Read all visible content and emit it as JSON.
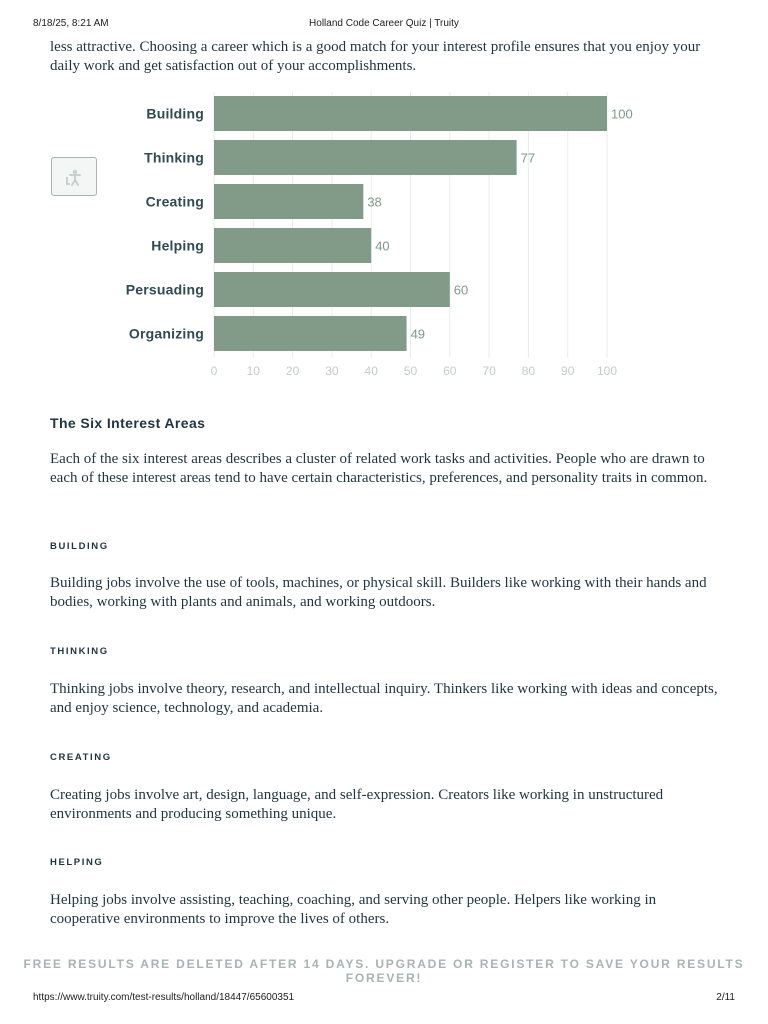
{
  "print_header": {
    "datetime": "8/18/25, 8:21 AM",
    "page_title": "Holland Code Career Quiz | Truity"
  },
  "print_footer": {
    "url": "https://www.truity.com/test-results/holland/18447/65600351",
    "page_number": "2/11"
  },
  "intro_text": "less attractive. Choosing a career which is a good match for your interest profile ensures that you enjoy your daily work and get satisfaction out of your accomplishments.",
  "side_button": {
    "icon": "accessibility-icon"
  },
  "chart_data": {
    "type": "bar",
    "orientation": "horizontal",
    "categories": [
      "Building",
      "Thinking",
      "Creating",
      "Helping",
      "Persuading",
      "Organizing"
    ],
    "values": [
      100,
      77,
      38,
      40,
      60,
      49
    ],
    "xlim": [
      0,
      100
    ],
    "xticks": [
      "0",
      "10",
      "20",
      "30",
      "40",
      "50",
      "60",
      "70",
      "80",
      "90",
      "100"
    ],
    "grid": true,
    "bar_color": "#829b89",
    "value_label_color": "#7f9a8a",
    "category_label_color": "#2f4a52"
  },
  "section": {
    "title": "The Six Interest Areas",
    "intro": "Each of the six interest areas describes a cluster of related work tasks and activities. People who are drawn to each of these interest areas tend to have certain characteristics, preferences, and personality traits in common."
  },
  "areas": [
    {
      "label": "BUILDING",
      "text": "Building jobs involve the use of tools, machines, or physical skill. Builders like working with their hands and bodies, working with plants and animals, and working outdoors."
    },
    {
      "label": "THINKING",
      "text": "Thinking jobs involve theory, research, and intellectual inquiry. Thinkers like working with ideas and concepts, and enjoy science, technology, and academia."
    },
    {
      "label": "CREATING",
      "text": "Creating jobs involve art, design, language, and self-expression. Creators like working in unstructured environments and producing something unique."
    },
    {
      "label": "HELPING",
      "text": "Helping jobs involve assisting, teaching, coaching, and serving other people. Helpers like working in cooperative environments to improve the lives of others."
    }
  ],
  "banner": "FREE RESULTS ARE DELETED AFTER 14 DAYS. UPGRADE OR REGISTER TO SAVE YOUR RESULTS FOREVER!"
}
